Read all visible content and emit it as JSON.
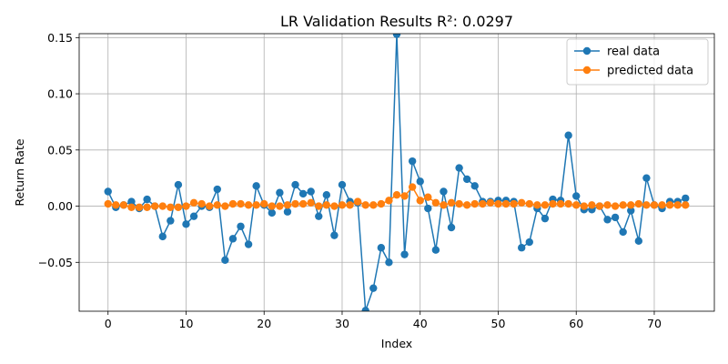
{
  "chart_data": {
    "type": "line",
    "title": "LR Validation Results R²: 0.0297",
    "xlabel": "Index",
    "ylabel": "Return Rate",
    "xlim": [
      -3.7,
      77.7
    ],
    "ylim": [
      -0.0935,
      0.1535
    ],
    "xticks": [
      0,
      10,
      20,
      30,
      40,
      50,
      60,
      70
    ],
    "yticks": [
      -0.05,
      0.0,
      0.05,
      0.1,
      0.15
    ],
    "ytick_labels": [
      "−0.05",
      "0.00",
      "0.05",
      "0.10",
      "0.15"
    ],
    "grid": true,
    "legend_position": "top-right",
    "x": [
      0,
      1,
      2,
      3,
      4,
      5,
      6,
      7,
      8,
      9,
      10,
      11,
      12,
      13,
      14,
      15,
      16,
      17,
      18,
      19,
      20,
      21,
      22,
      23,
      24,
      25,
      26,
      27,
      28,
      29,
      30,
      31,
      32,
      33,
      34,
      35,
      36,
      37,
      38,
      39,
      40,
      41,
      42,
      43,
      44,
      45,
      46,
      47,
      48,
      49,
      50,
      51,
      52,
      53,
      54,
      55,
      56,
      57,
      58,
      59,
      60,
      61,
      62,
      63,
      64,
      65,
      66,
      67,
      68,
      69,
      70,
      71,
      72,
      73,
      74
    ],
    "series": [
      {
        "name": "real data",
        "color": "#1f77b4",
        "values": [
          0.013,
          -0.001,
          0.001,
          0.004,
          -0.002,
          0.006,
          0.0,
          -0.027,
          -0.013,
          0.019,
          -0.016,
          -0.009,
          0.0,
          -0.001,
          0.015,
          -0.048,
          -0.029,
          -0.018,
          -0.034,
          0.018,
          0.001,
          -0.006,
          0.012,
          -0.005,
          0.019,
          0.011,
          0.013,
          -0.009,
          0.01,
          -0.026,
          0.019,
          0.004,
          0.003,
          -0.093,
          -0.073,
          -0.037,
          -0.05,
          0.153,
          -0.043,
          0.04,
          0.022,
          -0.002,
          -0.039,
          0.013,
          -0.019,
          0.034,
          0.024,
          0.018,
          0.004,
          0.004,
          0.005,
          0.005,
          0.004,
          -0.037,
          -0.032,
          -0.002,
          -0.011,
          0.006,
          0.005,
          0.063,
          0.009,
          -0.003,
          -0.003,
          0.0,
          -0.012,
          -0.01,
          -0.023,
          -0.004,
          -0.031,
          0.025,
          0.001,
          -0.002,
          0.004,
          0.004,
          0.007
        ]
      },
      {
        "name": "predicted data",
        "color": "#ff7f0e",
        "values": [
          0.002,
          0.001,
          0.001,
          -0.001,
          -0.001,
          -0.001,
          0.0,
          0.0,
          -0.001,
          -0.001,
          0.0,
          0.003,
          0.002,
          0.0,
          0.001,
          0.0,
          0.002,
          0.002,
          0.001,
          0.001,
          0.002,
          0.0,
          0.0,
          0.001,
          0.002,
          0.002,
          0.003,
          0.0,
          0.001,
          0.0,
          0.001,
          0.001,
          0.004,
          0.001,
          0.001,
          0.002,
          0.005,
          0.01,
          0.009,
          0.017,
          0.005,
          0.008,
          0.003,
          0.001,
          0.003,
          0.002,
          0.001,
          0.002,
          0.002,
          0.003,
          0.002,
          0.002,
          0.002,
          0.003,
          0.002,
          0.001,
          0.001,
          0.002,
          0.002,
          0.002,
          0.001,
          0.0,
          0.001,
          0.0,
          0.001,
          0.0,
          0.001,
          0.001,
          0.002,
          0.001,
          0.001,
          0.001,
          0.001,
          0.001,
          0.001
        ]
      }
    ]
  }
}
